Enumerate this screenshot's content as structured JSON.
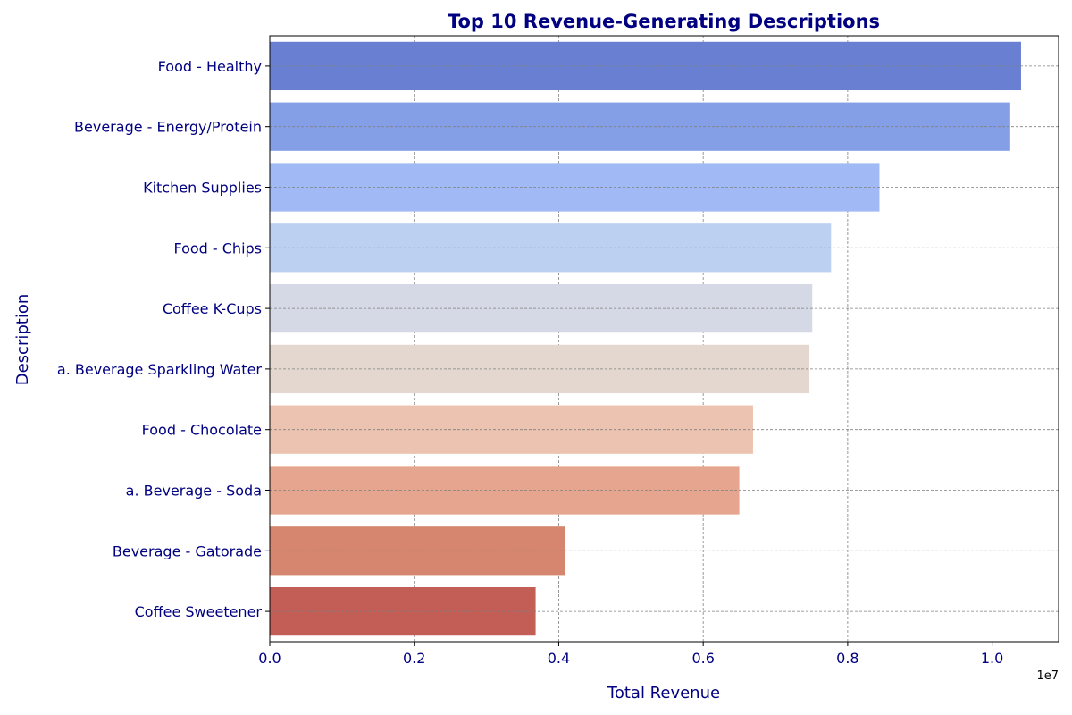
{
  "chart_data": {
    "type": "bar",
    "orientation": "horizontal",
    "title": "Top 10 Revenue-Generating Descriptions",
    "xlabel": "Total Revenue",
    "ylabel": "Description",
    "x_offset_label": "1e7",
    "categories": [
      "Food - Healthy",
      "Beverage - Energy/Protein",
      "Kitchen Supplies",
      "Food - Chips",
      "Coffee K-Cups",
      "a. Beverage Sparkling Water",
      "Food - Chocolate",
      "a. Beverage - Soda",
      "Beverage - Gatorade",
      "Coffee Sweetener"
    ],
    "values": [
      10400000,
      10250000,
      8440000,
      7770000,
      7510000,
      7470000,
      6690000,
      6500000,
      4090000,
      3680000
    ],
    "colors": [
      "#687fd2",
      "#849fe6",
      "#a1baf5",
      "#bcd0f2",
      "#d4d9e5",
      "#e3d7cf",
      "#ebc3b0",
      "#e5a58e",
      "#d6866f",
      "#c25e56"
    ],
    "xlim": [
      0,
      10920000
    ],
    "xticks": [
      0,
      2000000,
      4000000,
      6000000,
      8000000,
      10000000
    ],
    "xtick_labels": [
      "0.0",
      "0.2",
      "0.4",
      "0.6",
      "0.8",
      "1.0"
    ],
    "grid": true,
    "label_color": "#000080",
    "grid_color": "#808080"
  }
}
